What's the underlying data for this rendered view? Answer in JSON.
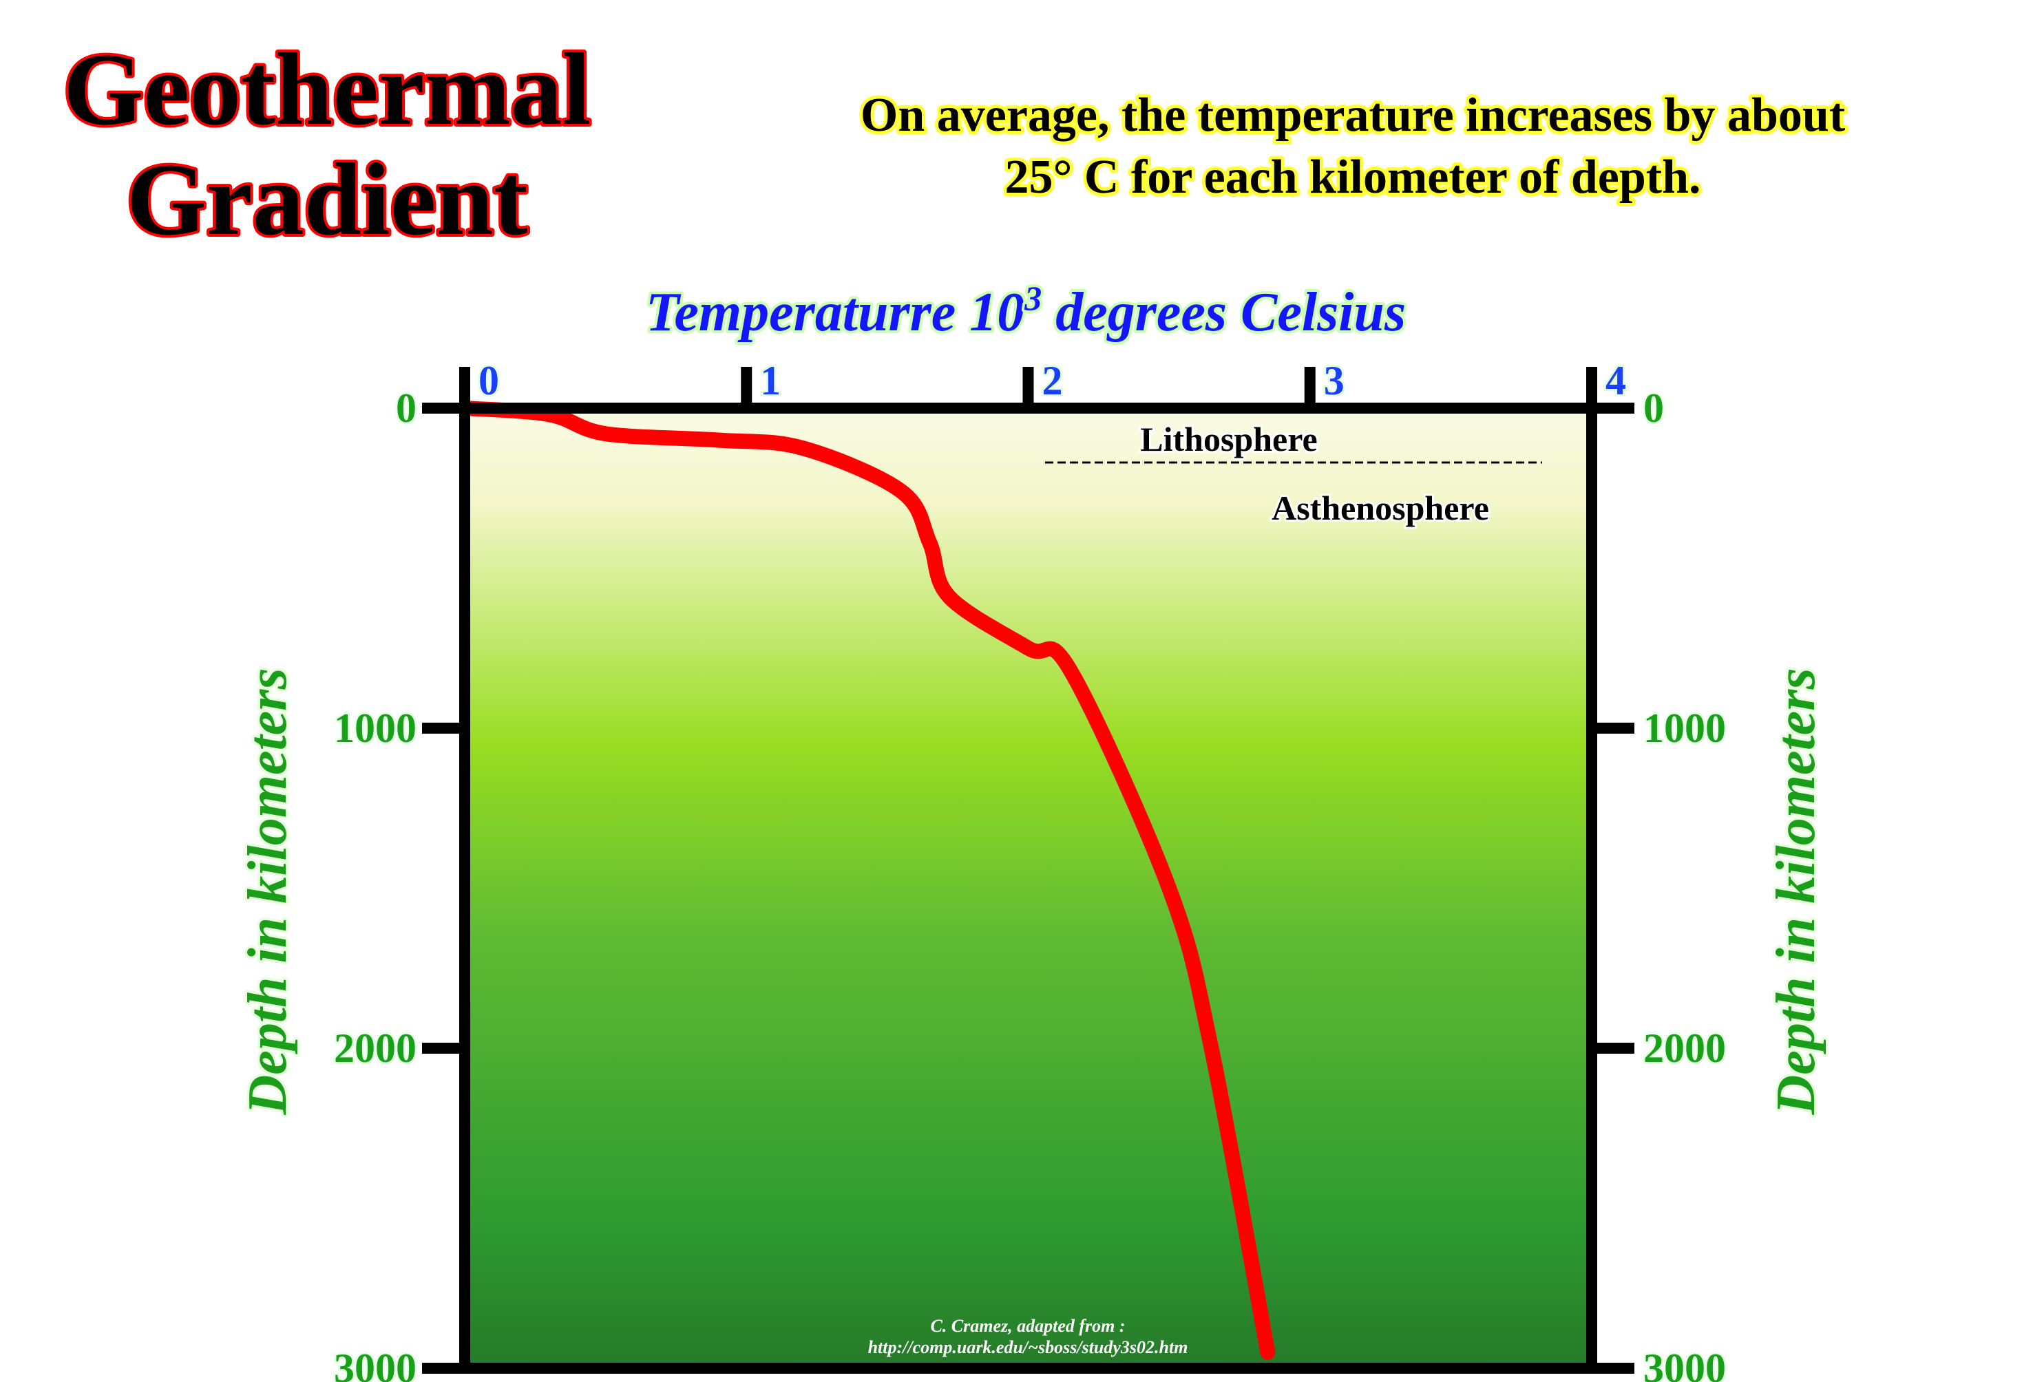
{
  "title": {
    "line1": "Geothermal",
    "line2": "Gradient"
  },
  "subtitle": {
    "line1": "On average, the temperature increases by about",
    "line2": "25° C for each kilometer of depth."
  },
  "colors": {
    "curve": "#ff0000",
    "frame": "#000000",
    "fill_top": "#fbfbe6",
    "fill_mid": "#99dd22",
    "fill_bottom": "#267a29"
  },
  "layers": {
    "upper": "Lithosphere",
    "lower": "Asthenosphere"
  },
  "credit": {
    "line1": "C. Cramez, adapted from :",
    "line2": "http://comp.uark.edu/~sboss/study3s02.htm"
  },
  "chart_data": {
    "type": "line",
    "xlabel_main": "Temperaturre 10",
    "xlabel_sup": "3",
    "xlabel_tail": " degrees Celsius",
    "ylabel_left": "Depth in kilometers",
    "ylabel_right": "Depth in kilometers",
    "xlim": [
      0,
      4
    ],
    "ylim": [
      0,
      3000
    ],
    "y_inverted": true,
    "x_ticks": [
      "0",
      "1",
      "2",
      "3",
      "4"
    ],
    "y_ticks": [
      "0",
      "1000",
      "2000",
      "3000"
    ],
    "grid": false,
    "series": [
      {
        "x": [
          0,
          0.3,
          0.5,
          0.9,
          1.2,
          1.55,
          1.65,
          1.72,
          2.0,
          2.15,
          2.5,
          2.65,
          2.85
        ],
        "y": [
          0,
          20,
          80,
          100,
          125,
          260,
          420,
          590,
          750,
          820,
          1500,
          2000,
          2950
        ]
      }
    ],
    "annotations": [
      "Lithosphere",
      "Asthenosphere"
    ],
    "boundary_depth": 170
  }
}
